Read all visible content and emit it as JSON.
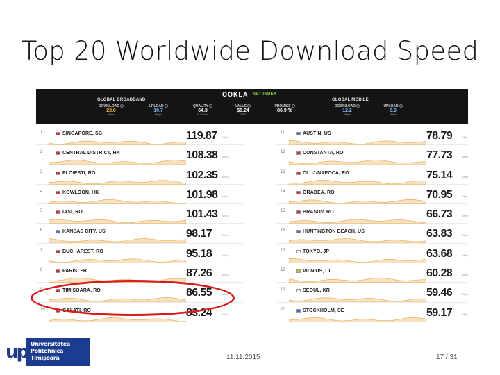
{
  "slide": {
    "title": "Top 20 Worldwide Download Speed",
    "footer_date": "11.11.2015",
    "footer_page": "17 / 31"
  },
  "header": {
    "brand": "OOKLA",
    "brand_sub": "NET INDEX",
    "global_broadband": {
      "label": "GLOBAL BROADBAND",
      "metrics": [
        {
          "label": "DOWNLOAD",
          "value": "23.0",
          "unit": "Mbps",
          "style": "dl"
        },
        {
          "label": "UPLOAD",
          "value": "10.7",
          "unit": "Mbps",
          "style": "ul"
        },
        {
          "label": "QUALITY",
          "value": "64.3",
          "unit": "R-Factor",
          "style": "wh"
        },
        {
          "label": "VALUE",
          "value": "$5.24",
          "unit": "USD",
          "style": "wh"
        },
        {
          "label": "PROMISE",
          "value": "86.9 %",
          "unit": "",
          "style": "wh"
        }
      ]
    },
    "global_mobile": {
      "label": "GLOBAL MOBILE",
      "metrics": [
        {
          "label": "DOWNLOAD",
          "value": "12.2",
          "unit": "Mbps",
          "style": "ul"
        },
        {
          "label": "UPLOAD",
          "value": "5.0",
          "unit": "Mbps",
          "style": "ul"
        }
      ]
    }
  },
  "rankings": {
    "left": [
      {
        "rank": "1",
        "city": "SINGAPORE, SG",
        "speed": "119.87",
        "unit": "Mbps",
        "flag": "sg"
      },
      {
        "rank": "2",
        "city": "CENTRAL DISTRICT, HK",
        "speed": "108.38",
        "unit": "Mbps",
        "flag": "hk"
      },
      {
        "rank": "3",
        "city": "PLOIESTI, RO",
        "speed": "102.35",
        "unit": "Mbps",
        "flag": "ro"
      },
      {
        "rank": "4",
        "city": "KOWLOON, HK",
        "speed": "101.98",
        "unit": "Mbps",
        "flag": "hk"
      },
      {
        "rank": "5",
        "city": "IASI, RO",
        "speed": "101.43",
        "unit": "Mbps",
        "flag": "ro"
      },
      {
        "rank": "6",
        "city": "KANSAS CITY, US",
        "speed": "98.17",
        "unit": "Mbps",
        "flag": "us"
      },
      {
        "rank": "7",
        "city": "BUCHAREST, RO",
        "speed": "95.18",
        "unit": "Mbps",
        "flag": "ro"
      },
      {
        "rank": "8",
        "city": "PARIS, FR",
        "speed": "87.26",
        "unit": "Mbps",
        "flag": "fr"
      },
      {
        "rank": "9",
        "city": "TIMISOARA, RO",
        "speed": "86.55",
        "unit": "Mbps",
        "flag": "ro"
      },
      {
        "rank": "10",
        "city": "GALATI, RO",
        "speed": "83.24",
        "unit": "Mbps",
        "flag": "ro"
      }
    ],
    "right": [
      {
        "rank": "11",
        "city": "AUSTIN, US",
        "speed": "78.79",
        "unit": "Mbps",
        "flag": "us"
      },
      {
        "rank": "12",
        "city": "CONSTANTA, RO",
        "speed": "77.73",
        "unit": "Mbps",
        "flag": "ro"
      },
      {
        "rank": "13",
        "city": "CLUJ-NAPOCA, RO",
        "speed": "75.14",
        "unit": "Mbps",
        "flag": "ro"
      },
      {
        "rank": "14",
        "city": "ORADEA, RO",
        "speed": "70.95",
        "unit": "Mbps",
        "flag": "ro"
      },
      {
        "rank": "15",
        "city": "BRASOV, RO",
        "speed": "66.73",
        "unit": "Mbps",
        "flag": "ro"
      },
      {
        "rank": "16",
        "city": "HUNTINGTON BEACH, US",
        "speed": "63.83",
        "unit": "Mbps",
        "flag": "us"
      },
      {
        "rank": "17",
        "city": "TOKYO, JP",
        "speed": "63.68",
        "unit": "Mbps",
        "flag": "jp"
      },
      {
        "rank": "18",
        "city": "VILNIUS, LT",
        "speed": "60.28",
        "unit": "Mbps",
        "flag": "lt"
      },
      {
        "rank": "19",
        "city": "SEOUL, KR",
        "speed": "59.46",
        "unit": "Mbps",
        "flag": "kr"
      },
      {
        "rank": "20",
        "city": "STOCKHOLM, SE",
        "speed": "59.17",
        "unit": "Mbps",
        "flag": "se"
      }
    ],
    "highlighted_city": "TIMISOARA, RO",
    "highlight_color": "#d61c1c",
    "sparkline_color": "#e8a84a"
  },
  "logo": {
    "mark": "up",
    "lines": [
      "Universitatea",
      "Politehnica",
      "Timișoara"
    ]
  }
}
